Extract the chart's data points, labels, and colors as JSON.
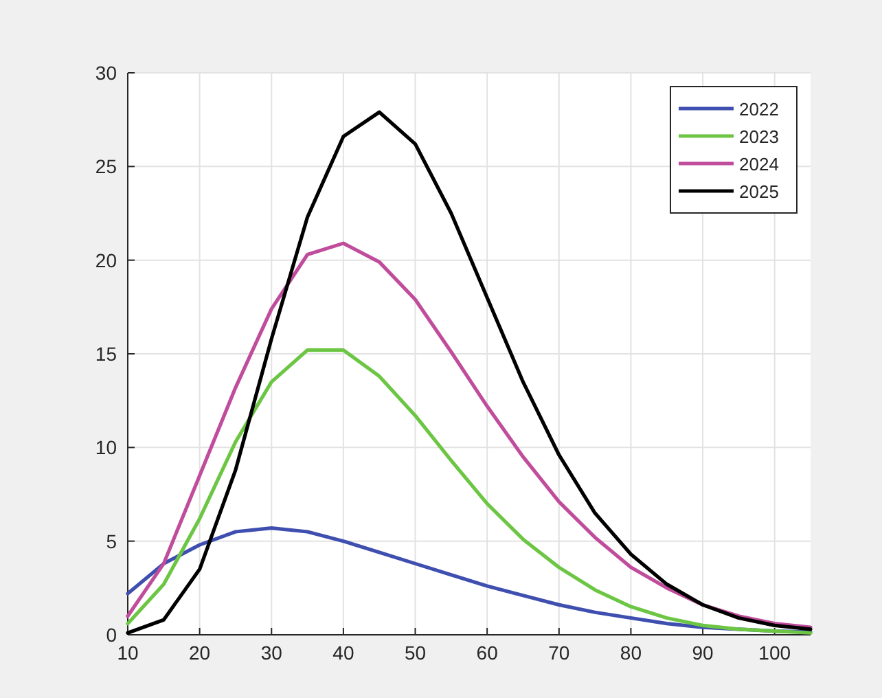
{
  "chart_data": {
    "type": "line",
    "x": [
      10,
      15,
      20,
      25,
      30,
      35,
      40,
      45,
      50,
      55,
      60,
      65,
      70,
      75,
      80,
      85,
      90,
      95,
      100,
      105
    ],
    "series": [
      {
        "name": "2022",
        "color": "#3f4fb0",
        "values": [
          2.2,
          3.8,
          4.8,
          5.5,
          5.7,
          5.5,
          5.0,
          4.4,
          3.8,
          3.2,
          2.6,
          2.1,
          1.6,
          1.2,
          0.9,
          0.6,
          0.4,
          0.3,
          0.2,
          0.15
        ]
      },
      {
        "name": "2023",
        "color": "#6cc644",
        "values": [
          0.6,
          2.7,
          6.2,
          10.3,
          13.5,
          15.2,
          15.2,
          13.8,
          11.7,
          9.3,
          7.0,
          5.1,
          3.6,
          2.4,
          1.5,
          0.9,
          0.5,
          0.3,
          0.2,
          0.1
        ]
      },
      {
        "name": "2024",
        "color": "#c04c9c",
        "values": [
          1.0,
          3.8,
          8.5,
          13.2,
          17.4,
          20.3,
          20.9,
          19.9,
          17.9,
          15.1,
          12.2,
          9.5,
          7.1,
          5.2,
          3.6,
          2.5,
          1.6,
          1.0,
          0.6,
          0.4
        ]
      },
      {
        "name": "2025",
        "color": "#000000",
        "values": [
          0.1,
          0.8,
          3.5,
          8.8,
          15.8,
          22.3,
          26.6,
          27.9,
          26.2,
          22.5,
          18.0,
          13.5,
          9.6,
          6.5,
          4.3,
          2.7,
          1.6,
          0.9,
          0.5,
          0.3
        ]
      }
    ],
    "xlim": [
      10,
      105
    ],
    "xticks": [
      10,
      20,
      30,
      40,
      50,
      60,
      70,
      80,
      90,
      100
    ],
    "ylim": [
      0,
      30
    ],
    "yticks": [
      0,
      5,
      10,
      15,
      20,
      25,
      30
    ],
    "grid": true,
    "legend": "top right",
    "marker": "none",
    "line_style": "solid"
  }
}
